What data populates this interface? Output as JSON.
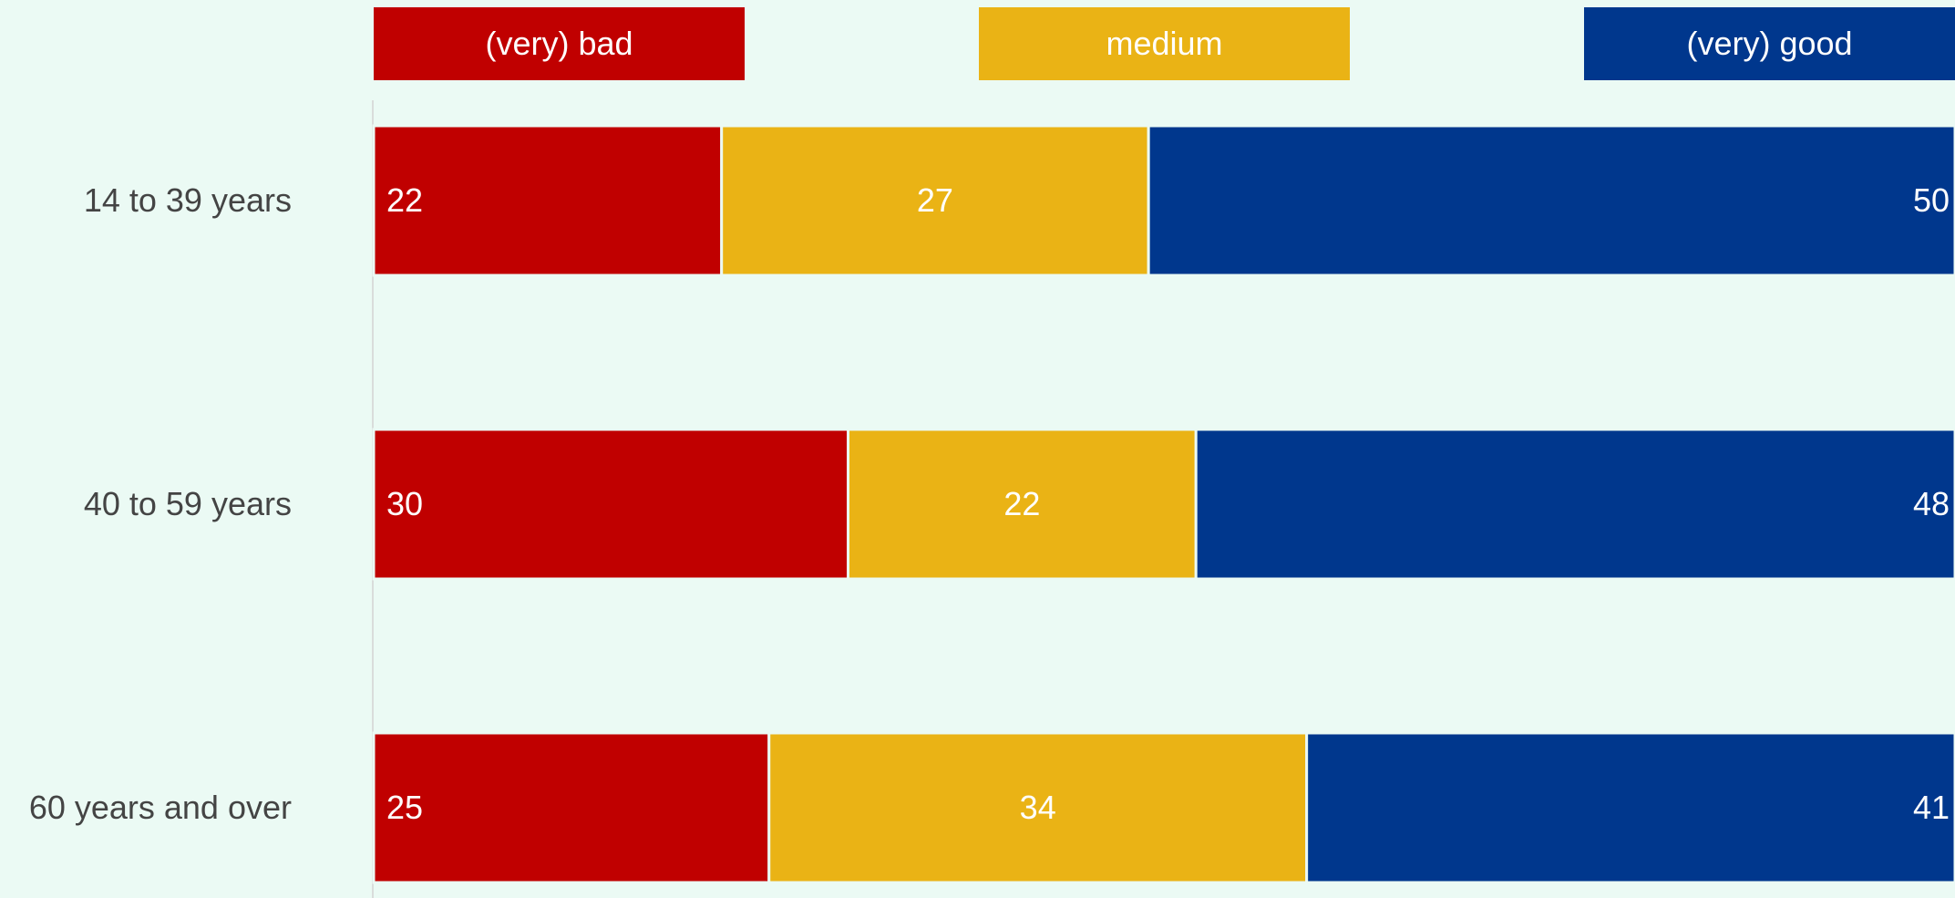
{
  "colors": {
    "background": "#ebfaf4",
    "bad": "#c00000",
    "medium": "#eab315",
    "good": "#00378d",
    "axis_line": "#d9dcdb",
    "category_text": "#444444",
    "label_text": "#ffffff"
  },
  "chart_data": {
    "type": "bar",
    "orientation": "horizontal",
    "stacked": true,
    "stack_total": 100,
    "legend_position": "top",
    "grid": false,
    "title": "",
    "xlabel": "",
    "ylabel": "",
    "categories": [
      "14 to 39 years",
      "40 to 59 years",
      "60 years and over"
    ],
    "series": [
      {
        "name": "(very) bad",
        "color_key": "bad",
        "values": [
          22,
          30,
          25
        ]
      },
      {
        "name": "medium",
        "color_key": "medium",
        "values": [
          27,
          22,
          34
        ]
      },
      {
        "name": "(very) good",
        "color_key": "good",
        "values": [
          50,
          48,
          41
        ]
      }
    ]
  }
}
